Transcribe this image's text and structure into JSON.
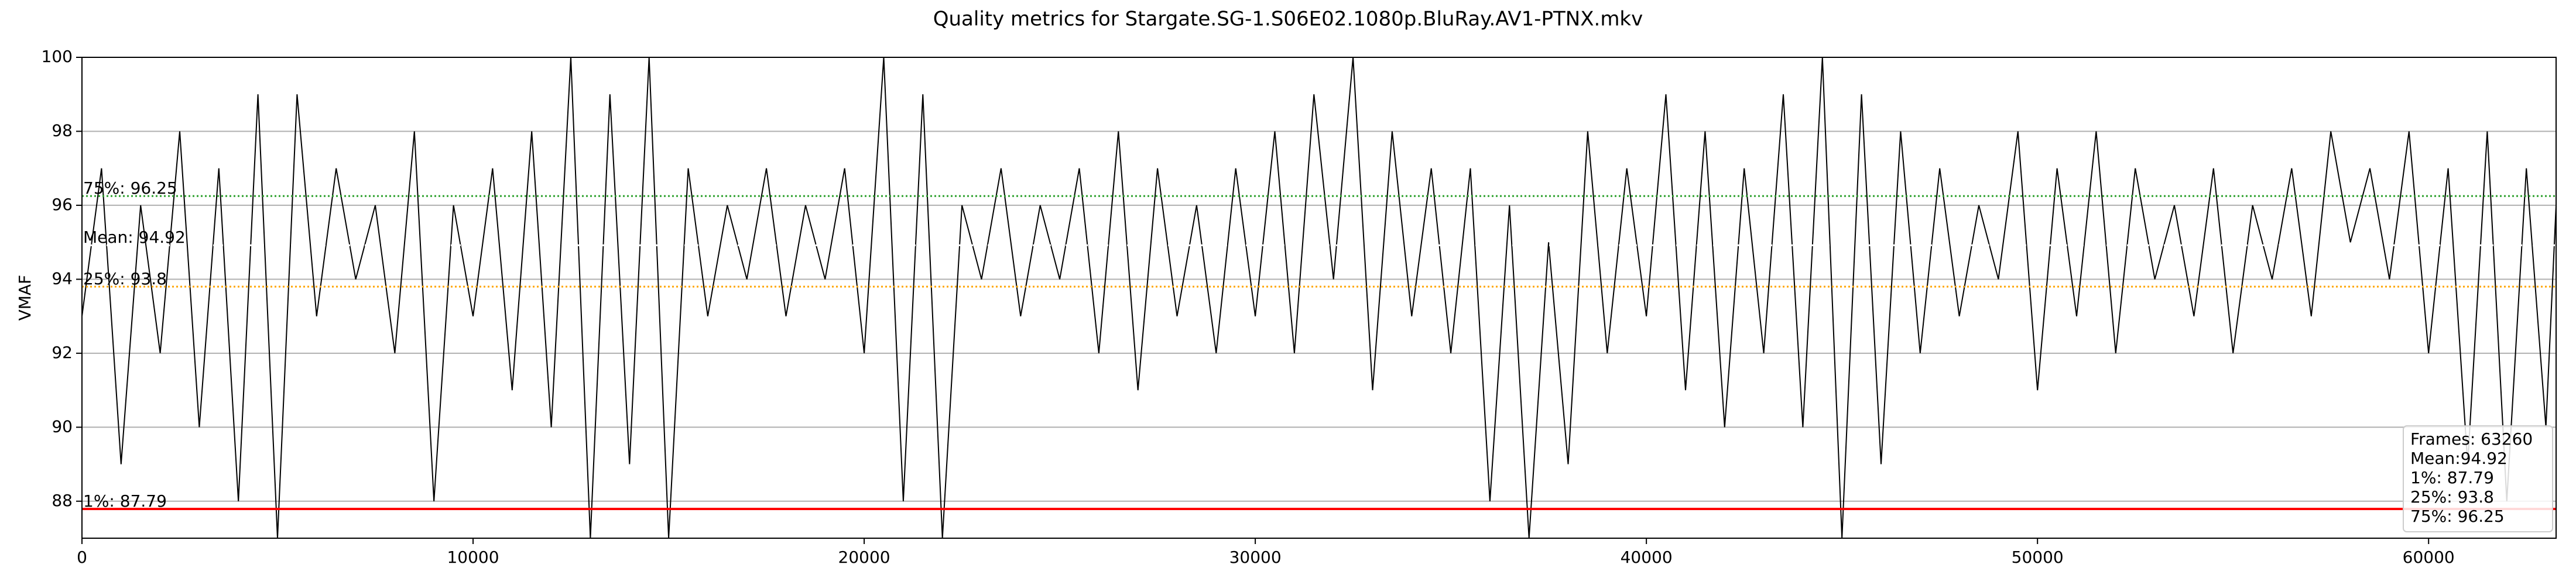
{
  "chart_data": {
    "type": "line",
    "title": "Quality metrics for Stargate.SG-1.S06E02.1080p.BluRay.AV1-PTNX.mkv",
    "y_label": "VMAF",
    "x": [
      0,
      500,
      1000,
      1500,
      2000,
      2500,
      3000,
      3500,
      4000,
      4500,
      5000,
      5500,
      6000,
      6500,
      7000,
      7500,
      8000,
      8500,
      9000,
      9500,
      10000,
      10500,
      11000,
      11500,
      12000,
      12500,
      13000,
      13500,
      14000,
      14500,
      15000,
      15500,
      16000,
      16500,
      17000,
      17500,
      18000,
      18500,
      19000,
      19500,
      20000,
      20500,
      21000,
      21500,
      22000,
      22500,
      23000,
      23500,
      24000,
      24500,
      25000,
      25500,
      26000,
      26500,
      27000,
      27500,
      28000,
      28500,
      29000,
      29500,
      30000,
      30500,
      31000,
      31500,
      32000,
      32500,
      33000,
      33500,
      34000,
      34500,
      35000,
      35500,
      36000,
      36500,
      37000,
      37500,
      38000,
      38500,
      39000,
      39500,
      40000,
      40500,
      41000,
      41500,
      42000,
      42500,
      43000,
      43500,
      44000,
      44500,
      45000,
      45500,
      46000,
      46500,
      47000,
      47500,
      48000,
      48500,
      49000,
      49500,
      50000,
      50500,
      51000,
      51500,
      52000,
      52500,
      53000,
      53500,
      54000,
      54500,
      55000,
      55500,
      56000,
      56500,
      57000,
      57500,
      58000,
      58500,
      59000,
      59500,
      60000,
      60500,
      61000,
      61500,
      62000,
      62500,
      63000,
      63260
    ],
    "series": [
      {
        "color": "#000000",
        "values": [
          93,
          97,
          89,
          96,
          92,
          98,
          90,
          97,
          88,
          99,
          87,
          99,
          93,
          97,
          94,
          96,
          92,
          98,
          88,
          96,
          93,
          97,
          91,
          98,
          90,
          100,
          87,
          99,
          89,
          100,
          87,
          97,
          93,
          96,
          94,
          97,
          93,
          96,
          94,
          97,
          92,
          100,
          88,
          99,
          87,
          96,
          94,
          97,
          93,
          96,
          94,
          97,
          92,
          98,
          91,
          97,
          93,
          96,
          92,
          97,
          93,
          98,
          92,
          99,
          94,
          100,
          91,
          98,
          93,
          97,
          92,
          97,
          88,
          96,
          87,
          95,
          89,
          98,
          92,
          97,
          93,
          99,
          91,
          98,
          90,
          97,
          92,
          99,
          90,
          100,
          87,
          99,
          89,
          98,
          92,
          97,
          93,
          96,
          94,
          98,
          91,
          97,
          93,
          98,
          92,
          97,
          94,
          96,
          93,
          97,
          92,
          96,
          94,
          97,
          93,
          98,
          95,
          97,
          94,
          98,
          92,
          97,
          89,
          98,
          88,
          97,
          90,
          96
        ]
      }
    ],
    "reference_lines": [
      {
        "label": "75%: 96.25",
        "value": 96.25,
        "color": "#2ca02c",
        "style": "dotted"
      },
      {
        "label": "Mean: 94.92",
        "value": 94.92,
        "color": "#ffffff",
        "style": "dotted"
      },
      {
        "label": "25%: 93.8",
        "value": 93.8,
        "color": "#ffa500",
        "style": "dotted"
      },
      {
        "label": "1%: 87.79",
        "value": 87.79,
        "color": "#ff0000",
        "style": "solid"
      }
    ],
    "stats_box": [
      "Frames: 63260",
      "Mean:94.92",
      "1%: 87.79",
      "25%: 93.8",
      "75%: 96.25"
    ],
    "xlim": [
      0,
      63260
    ],
    "xticks": [
      0,
      10000,
      20000,
      30000,
      40000,
      50000,
      60000
    ],
    "ylim": [
      87,
      100
    ],
    "yticks": [
      88,
      90,
      92,
      94,
      96,
      98,
      100
    ],
    "grid": true
  }
}
